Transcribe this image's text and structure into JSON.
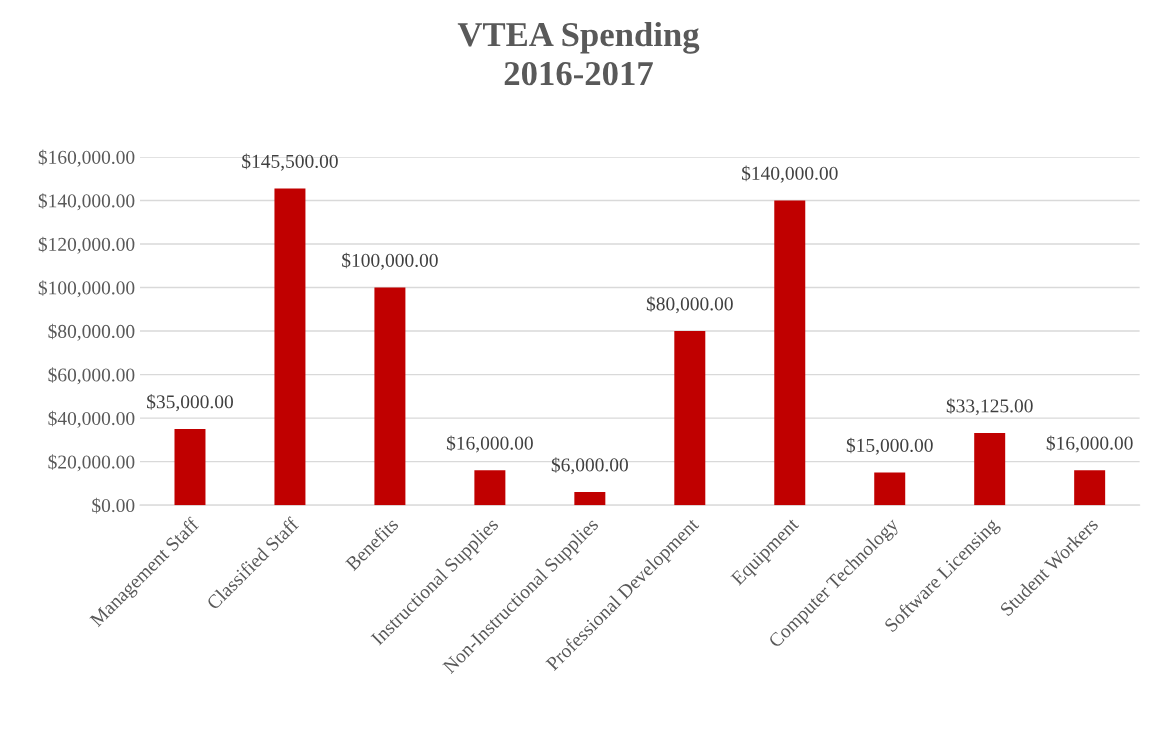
{
  "chart_data": {
    "type": "bar",
    "title": "VTEA Spending\n2016-2017",
    "categories": [
      "Management Staff",
      "Classified Staff",
      "Benefits",
      "Instructional Supplies",
      "Non-Instructional Supplies",
      "Professional Development",
      "Equipment",
      "Computer Technology",
      "Software Licensing",
      "Student Workers"
    ],
    "values": [
      35000,
      145500,
      100000,
      16000,
      6000,
      80000,
      140000,
      15000,
      33125,
      16000
    ],
    "value_labels": [
      "$35,000.00",
      "$145,500.00",
      "$100,000.00",
      "$16,000.00",
      "$6,000.00",
      "$80,000.00",
      "$140,000.00",
      "$15,000.00",
      "$33,125.00",
      "$16,000.00"
    ],
    "color": "#c00000",
    "ylim": [
      0,
      160000
    ],
    "yticks": [
      {
        "value": 0,
        "label": "$0.00"
      },
      {
        "value": 20000,
        "label": "$20,000.00"
      },
      {
        "value": 40000,
        "label": "$40,000.00"
      },
      {
        "value": 60000,
        "label": "$60,000.00"
      },
      {
        "value": 80000,
        "label": "$80,000.00"
      },
      {
        "value": 100000,
        "label": "$100,000.00"
      },
      {
        "value": 120000,
        "label": "$120,000.00"
      },
      {
        "value": 140000,
        "label": "$140,000.00"
      },
      {
        "value": 160000,
        "label": "$160,000.00"
      }
    ],
    "grid": "y",
    "legend": false
  }
}
